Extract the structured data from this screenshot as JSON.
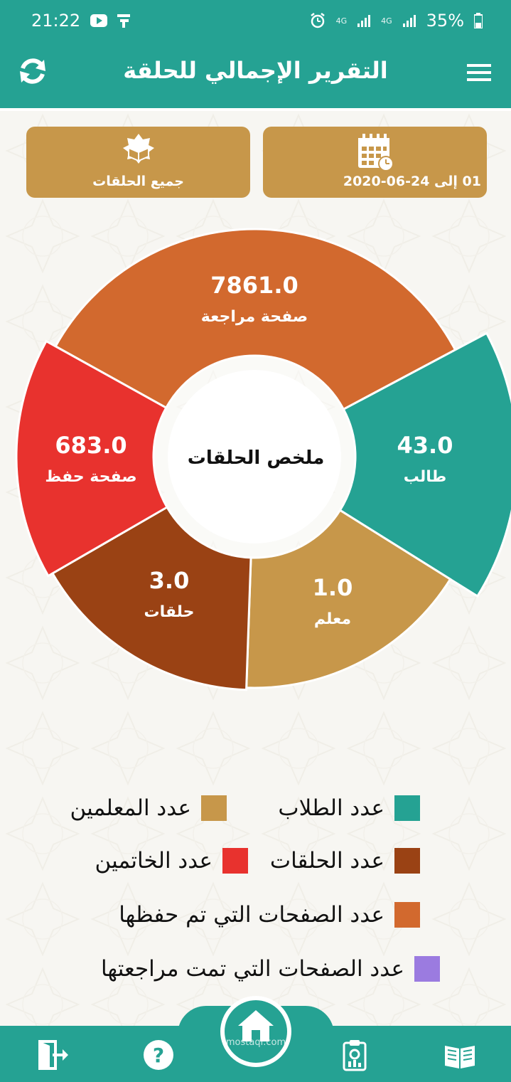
{
  "status": {
    "time": "21:22",
    "network_1": "4G",
    "network_2": "4G",
    "battery": "35%"
  },
  "header": {
    "title": "التقرير الإجمالي للحلقة"
  },
  "filters": {
    "circles_label": "جميع الحلقات",
    "date_label": "01 إلى 24-06-2020"
  },
  "chart_data": {
    "type": "pie",
    "center_label": "ملخص الحلقات",
    "slices": [
      {
        "value_text": "7861.0",
        "value": 7861.0,
        "label": "صفحة مراجعة",
        "color": "#d2692e"
      },
      {
        "value_text": "43.0",
        "value": 43.0,
        "label": "طالب",
        "color": "#25a293"
      },
      {
        "value_text": "1.0",
        "value": 1.0,
        "label": "معلم",
        "color": "#c7974a"
      },
      {
        "value_text": "3.0",
        "value": 3.0,
        "label": "حلقات",
        "color": "#9a4214"
      },
      {
        "value_text": "683.0",
        "value": 683.0,
        "label": "صفحة حفظ",
        "color": "#e8322e"
      }
    ]
  },
  "legend": {
    "students": {
      "label": "عدد الطلاب",
      "color": "#25a293"
    },
    "teachers": {
      "label": "عدد المعلمين",
      "color": "#c7974a"
    },
    "circles": {
      "label": "عدد الحلقات",
      "color": "#9a4214"
    },
    "finishers": {
      "label": "عدد الخاتمين",
      "color": "#e8322e"
    },
    "memorized": {
      "label": "عدد الصفحات التي تم حفظها",
      "color": "#d2692e"
    },
    "reviewed": {
      "label": "عدد الصفحات التي تمت مراجعتها",
      "color": "#9b7be0"
    }
  },
  "bottom_nav": {
    "items": [
      "logout-icon",
      "help-icon",
      "home-icon",
      "report-icon",
      "quran-icon"
    ],
    "watermark": "mostaql.com"
  }
}
